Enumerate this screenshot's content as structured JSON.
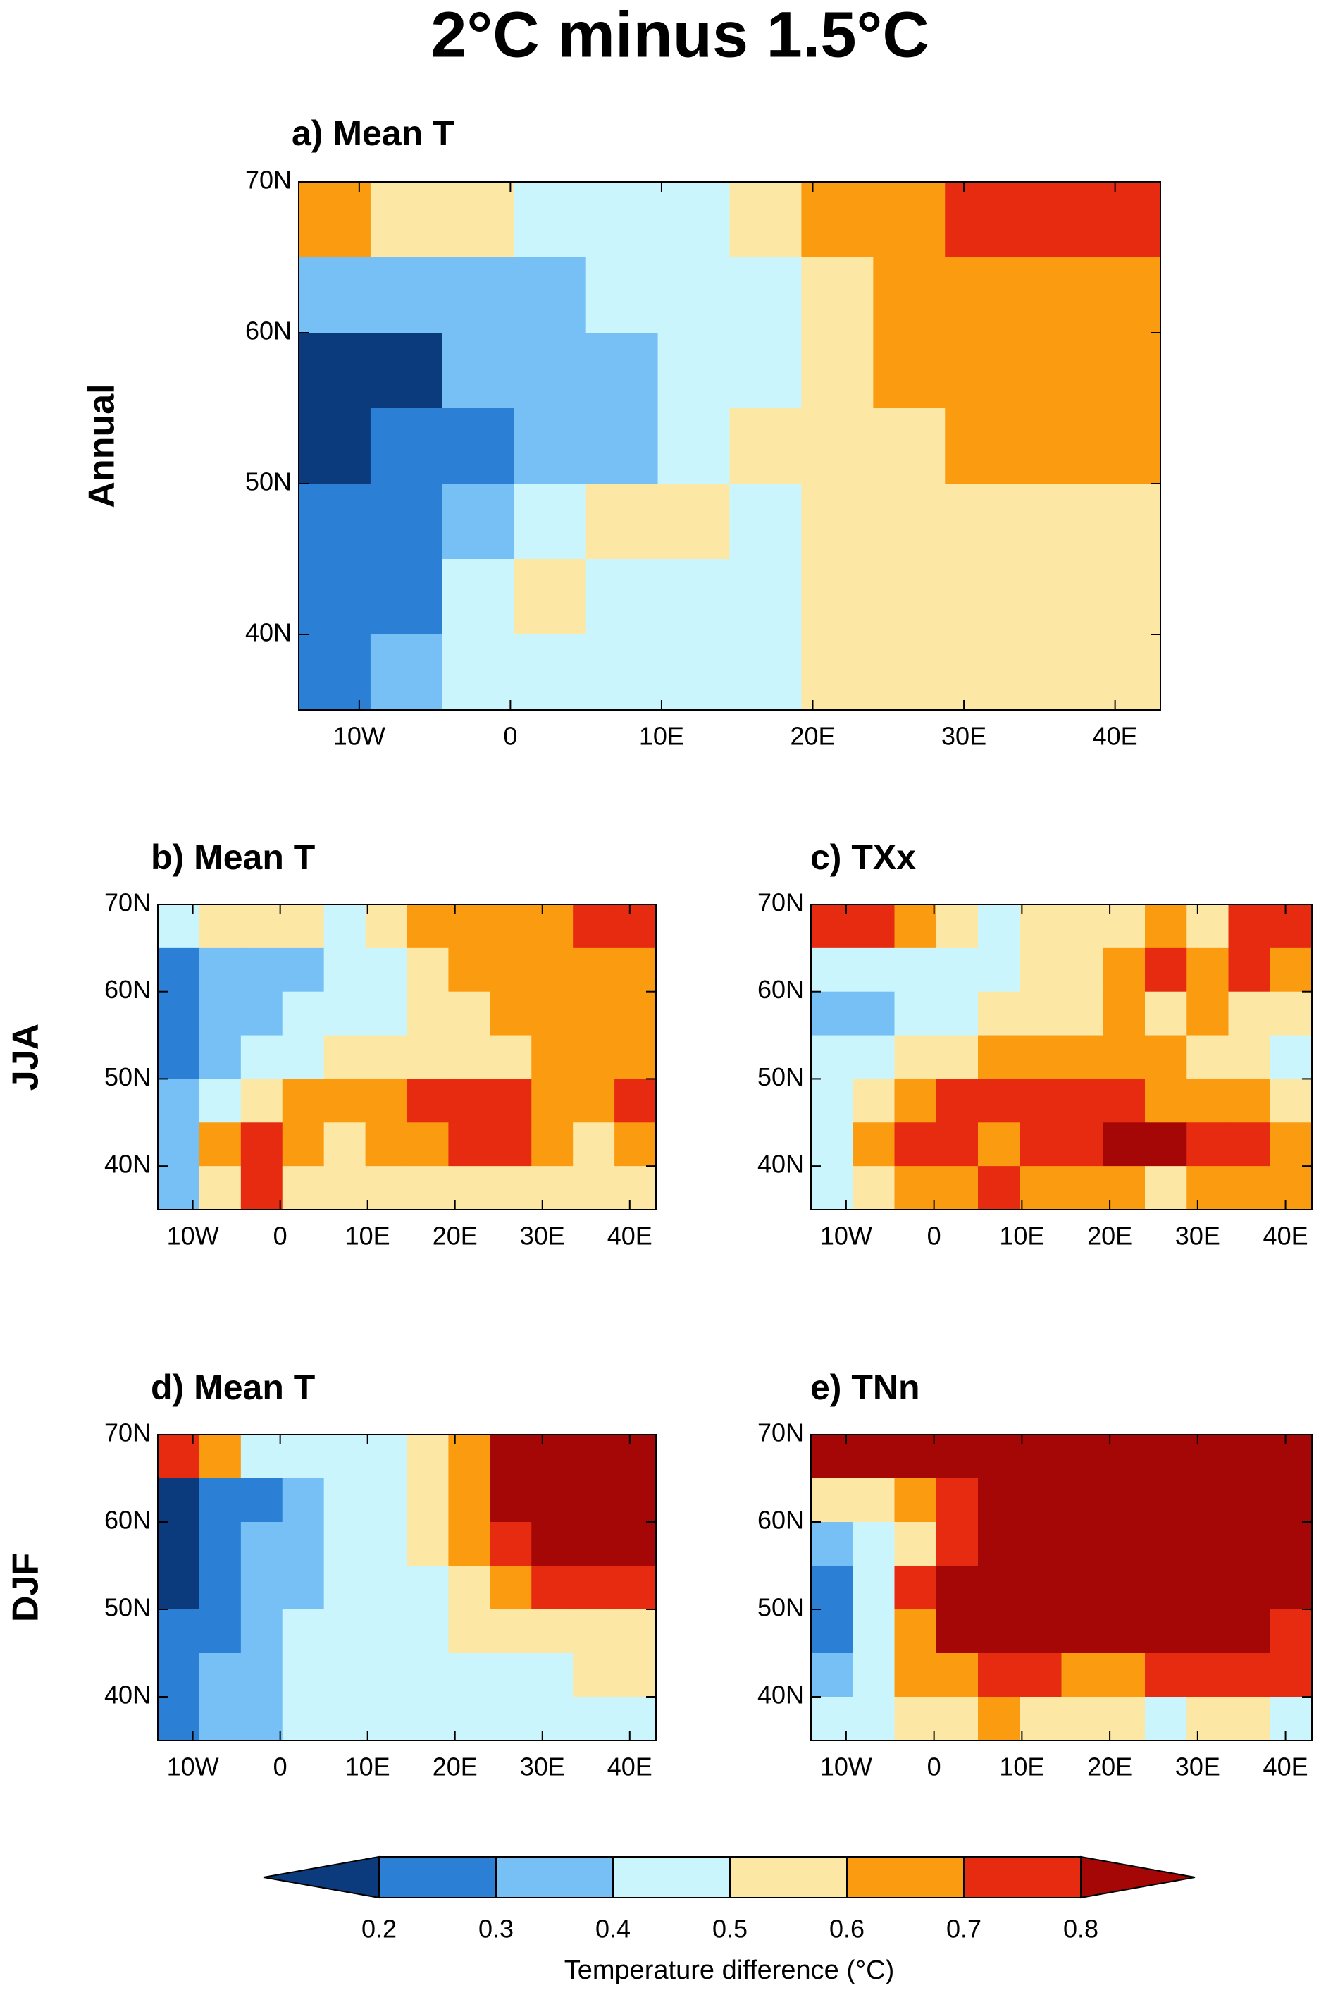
{
  "title": "2°C minus 1.5°C",
  "colorbar": {
    "ticks": [
      0.2,
      0.3,
      0.4,
      0.5,
      0.6,
      0.7,
      0.8
    ],
    "colors": [
      "#0b3b7d",
      "#2b80d6",
      "#76c0f6",
      "#cbf5fd",
      "#fde7a5",
      "#fb9b10",
      "#e62b10",
      "#a50707"
    ],
    "label": "Temperature difference (°C)"
  },
  "chart_data": [
    {
      "type": "heatmap",
      "title": "a) Mean T",
      "row_label": "Annual",
      "xlim": [
        -14,
        43
      ],
      "ylim": [
        35,
        70
      ],
      "xticks": [
        {
          "value": -10,
          "label": "10W"
        },
        0,
        {
          "value": 10,
          "label": "10E"
        },
        {
          "value": 20,
          "label": "20E"
        },
        {
          "value": 30,
          "label": "30E"
        },
        {
          "value": 40,
          "label": "40E"
        }
      ],
      "yticks": [
        {
          "value": 40,
          "label": "40N"
        },
        {
          "value": 50,
          "label": "50N"
        },
        {
          "value": 60,
          "label": "60N"
        },
        {
          "value": 70,
          "label": "70N"
        }
      ],
      "values": [
        [
          0.65,
          0.55,
          0.55,
          0.45,
          0.45,
          0.45,
          0.55,
          0.65,
          0.65,
          0.75,
          0.75,
          0.75
        ],
        [
          0.35,
          0.35,
          0.35,
          0.35,
          0.45,
          0.45,
          0.45,
          0.55,
          0.65,
          0.65,
          0.65,
          0.65
        ],
        [
          0.15,
          0.15,
          0.35,
          0.35,
          0.35,
          0.45,
          0.45,
          0.55,
          0.65,
          0.65,
          0.65,
          0.65
        ],
        [
          0.15,
          0.25,
          0.25,
          0.35,
          0.35,
          0.45,
          0.55,
          0.55,
          0.55,
          0.65,
          0.65,
          0.65
        ],
        [
          0.25,
          0.25,
          0.35,
          0.45,
          0.55,
          0.55,
          0.45,
          0.55,
          0.55,
          0.55,
          0.55,
          0.55
        ],
        [
          0.25,
          0.25,
          0.45,
          0.55,
          0.45,
          0.45,
          0.45,
          0.55,
          0.55,
          0.55,
          0.55,
          0.55
        ],
        [
          0.25,
          0.35,
          0.45,
          0.45,
          0.45,
          0.45,
          0.45,
          0.55,
          0.55,
          0.55,
          0.55,
          0.55
        ]
      ]
    },
    {
      "type": "heatmap",
      "title": "b) Mean T",
      "row_label": "JJA",
      "xlim": [
        -14,
        43
      ],
      "ylim": [
        35,
        70
      ],
      "xticks": [
        {
          "value": -10,
          "label": "10W"
        },
        0,
        {
          "value": 10,
          "label": "10E"
        },
        {
          "value": 20,
          "label": "20E"
        },
        {
          "value": 30,
          "label": "30E"
        },
        {
          "value": 40,
          "label": "40E"
        }
      ],
      "yticks": [
        {
          "value": 40,
          "label": "40N"
        },
        {
          "value": 50,
          "label": "50N"
        },
        {
          "value": 60,
          "label": "60N"
        },
        {
          "value": 70,
          "label": "70N"
        }
      ],
      "values": [
        [
          0.45,
          0.55,
          0.55,
          0.55,
          0.45,
          0.55,
          0.65,
          0.65,
          0.65,
          0.65,
          0.75,
          0.75
        ],
        [
          0.25,
          0.35,
          0.35,
          0.35,
          0.45,
          0.45,
          0.55,
          0.65,
          0.65,
          0.65,
          0.65,
          0.65
        ],
        [
          0.25,
          0.35,
          0.35,
          0.45,
          0.45,
          0.45,
          0.55,
          0.55,
          0.65,
          0.65,
          0.65,
          0.65
        ],
        [
          0.25,
          0.35,
          0.45,
          0.45,
          0.55,
          0.55,
          0.55,
          0.55,
          0.55,
          0.65,
          0.65,
          0.65
        ],
        [
          0.35,
          0.45,
          0.55,
          0.65,
          0.65,
          0.65,
          0.75,
          0.75,
          0.75,
          0.65,
          0.65,
          0.75
        ],
        [
          0.35,
          0.65,
          0.75,
          0.65,
          0.55,
          0.65,
          0.65,
          0.75,
          0.75,
          0.65,
          0.55,
          0.65
        ],
        [
          0.35,
          0.55,
          0.75,
          0.55,
          0.55,
          0.55,
          0.55,
          0.55,
          0.55,
          0.55,
          0.55,
          0.55
        ]
      ]
    },
    {
      "type": "heatmap",
      "title": "c) TXx",
      "xlim": [
        -14,
        43
      ],
      "ylim": [
        35,
        70
      ],
      "xticks": [
        {
          "value": -10,
          "label": "10W"
        },
        0,
        {
          "value": 10,
          "label": "10E"
        },
        {
          "value": 20,
          "label": "20E"
        },
        {
          "value": 30,
          "label": "30E"
        },
        {
          "value": 40,
          "label": "40E"
        }
      ],
      "yticks": [
        {
          "value": 40,
          "label": "40N"
        },
        {
          "value": 50,
          "label": "50N"
        },
        {
          "value": 60,
          "label": "60N"
        },
        {
          "value": 70,
          "label": "70N"
        }
      ],
      "values": [
        [
          0.75,
          0.75,
          0.65,
          0.55,
          0.45,
          0.55,
          0.55,
          0.55,
          0.65,
          0.55,
          0.75,
          0.75
        ],
        [
          0.45,
          0.45,
          0.45,
          0.45,
          0.45,
          0.55,
          0.55,
          0.65,
          0.75,
          0.65,
          0.75,
          0.65
        ],
        [
          0.35,
          0.35,
          0.45,
          0.45,
          0.55,
          0.55,
          0.55,
          0.65,
          0.55,
          0.65,
          0.55,
          0.55
        ],
        [
          0.45,
          0.45,
          0.55,
          0.55,
          0.65,
          0.65,
          0.65,
          0.65,
          0.65,
          0.55,
          0.55,
          0.45
        ],
        [
          0.45,
          0.55,
          0.65,
          0.75,
          0.75,
          0.75,
          0.75,
          0.75,
          0.65,
          0.65,
          0.65,
          0.55
        ],
        [
          0.45,
          0.65,
          0.75,
          0.75,
          0.65,
          0.75,
          0.75,
          0.85,
          0.85,
          0.75,
          0.75,
          0.65
        ],
        [
          0.45,
          0.55,
          0.65,
          0.65,
          0.75,
          0.65,
          0.65,
          0.65,
          0.55,
          0.65,
          0.65,
          0.65
        ]
      ]
    },
    {
      "type": "heatmap",
      "title": "d) Mean T",
      "row_label": "DJF",
      "xlim": [
        -14,
        43
      ],
      "ylim": [
        35,
        70
      ],
      "xticks": [
        {
          "value": -10,
          "label": "10W"
        },
        0,
        {
          "value": 10,
          "label": "10E"
        },
        {
          "value": 20,
          "label": "20E"
        },
        {
          "value": 30,
          "label": "30E"
        },
        {
          "value": 40,
          "label": "40E"
        }
      ],
      "yticks": [
        {
          "value": 40,
          "label": "40N"
        },
        {
          "value": 50,
          "label": "50N"
        },
        {
          "value": 60,
          "label": "60N"
        },
        {
          "value": 70,
          "label": "70N"
        }
      ],
      "values": [
        [
          0.75,
          0.65,
          0.45,
          0.45,
          0.45,
          0.45,
          0.55,
          0.65,
          0.85,
          0.85,
          0.85,
          0.85
        ],
        [
          0.15,
          0.25,
          0.25,
          0.35,
          0.45,
          0.45,
          0.55,
          0.65,
          0.85,
          0.85,
          0.85,
          0.85
        ],
        [
          0.15,
          0.25,
          0.35,
          0.35,
          0.45,
          0.45,
          0.55,
          0.65,
          0.75,
          0.85,
          0.85,
          0.85
        ],
        [
          0.15,
          0.25,
          0.35,
          0.35,
          0.45,
          0.45,
          0.45,
          0.55,
          0.65,
          0.75,
          0.75,
          0.75
        ],
        [
          0.25,
          0.25,
          0.35,
          0.45,
          0.45,
          0.45,
          0.45,
          0.55,
          0.55,
          0.55,
          0.55,
          0.55
        ],
        [
          0.25,
          0.35,
          0.35,
          0.45,
          0.45,
          0.45,
          0.45,
          0.45,
          0.45,
          0.45,
          0.55,
          0.55
        ],
        [
          0.25,
          0.35,
          0.35,
          0.45,
          0.45,
          0.45,
          0.45,
          0.45,
          0.45,
          0.45,
          0.45,
          0.45
        ]
      ]
    },
    {
      "type": "heatmap",
      "title": "e) TNn",
      "xlim": [
        -14,
        43
      ],
      "ylim": [
        35,
        70
      ],
      "xticks": [
        {
          "value": -10,
          "label": "10W"
        },
        0,
        {
          "value": 10,
          "label": "10E"
        },
        {
          "value": 20,
          "label": "20E"
        },
        {
          "value": 30,
          "label": "30E"
        },
        {
          "value": 40,
          "label": "40E"
        }
      ],
      "yticks": [
        {
          "value": 40,
          "label": "40N"
        },
        {
          "value": 50,
          "label": "50N"
        },
        {
          "value": 60,
          "label": "60N"
        },
        {
          "value": 70,
          "label": "70N"
        }
      ],
      "values": [
        [
          0.85,
          0.85,
          0.85,
          0.85,
          0.85,
          0.85,
          0.85,
          0.85,
          0.85,
          0.85,
          0.85,
          0.85
        ],
        [
          0.55,
          0.55,
          0.65,
          0.75,
          0.85,
          0.85,
          0.85,
          0.85,
          0.85,
          0.85,
          0.85,
          0.85
        ],
        [
          0.35,
          0.45,
          0.55,
          0.75,
          0.85,
          0.85,
          0.85,
          0.85,
          0.85,
          0.85,
          0.85,
          0.85
        ],
        [
          0.25,
          0.45,
          0.75,
          0.85,
          0.85,
          0.85,
          0.85,
          0.85,
          0.85,
          0.85,
          0.85,
          0.85
        ],
        [
          0.25,
          0.45,
          0.65,
          0.85,
          0.85,
          0.85,
          0.85,
          0.85,
          0.85,
          0.85,
          0.85,
          0.75
        ],
        [
          0.35,
          0.45,
          0.65,
          0.65,
          0.75,
          0.75,
          0.65,
          0.65,
          0.75,
          0.75,
          0.75,
          0.75
        ],
        [
          0.45,
          0.45,
          0.55,
          0.55,
          0.65,
          0.55,
          0.55,
          0.55,
          0.45,
          0.55,
          0.55,
          0.45
        ]
      ]
    }
  ]
}
